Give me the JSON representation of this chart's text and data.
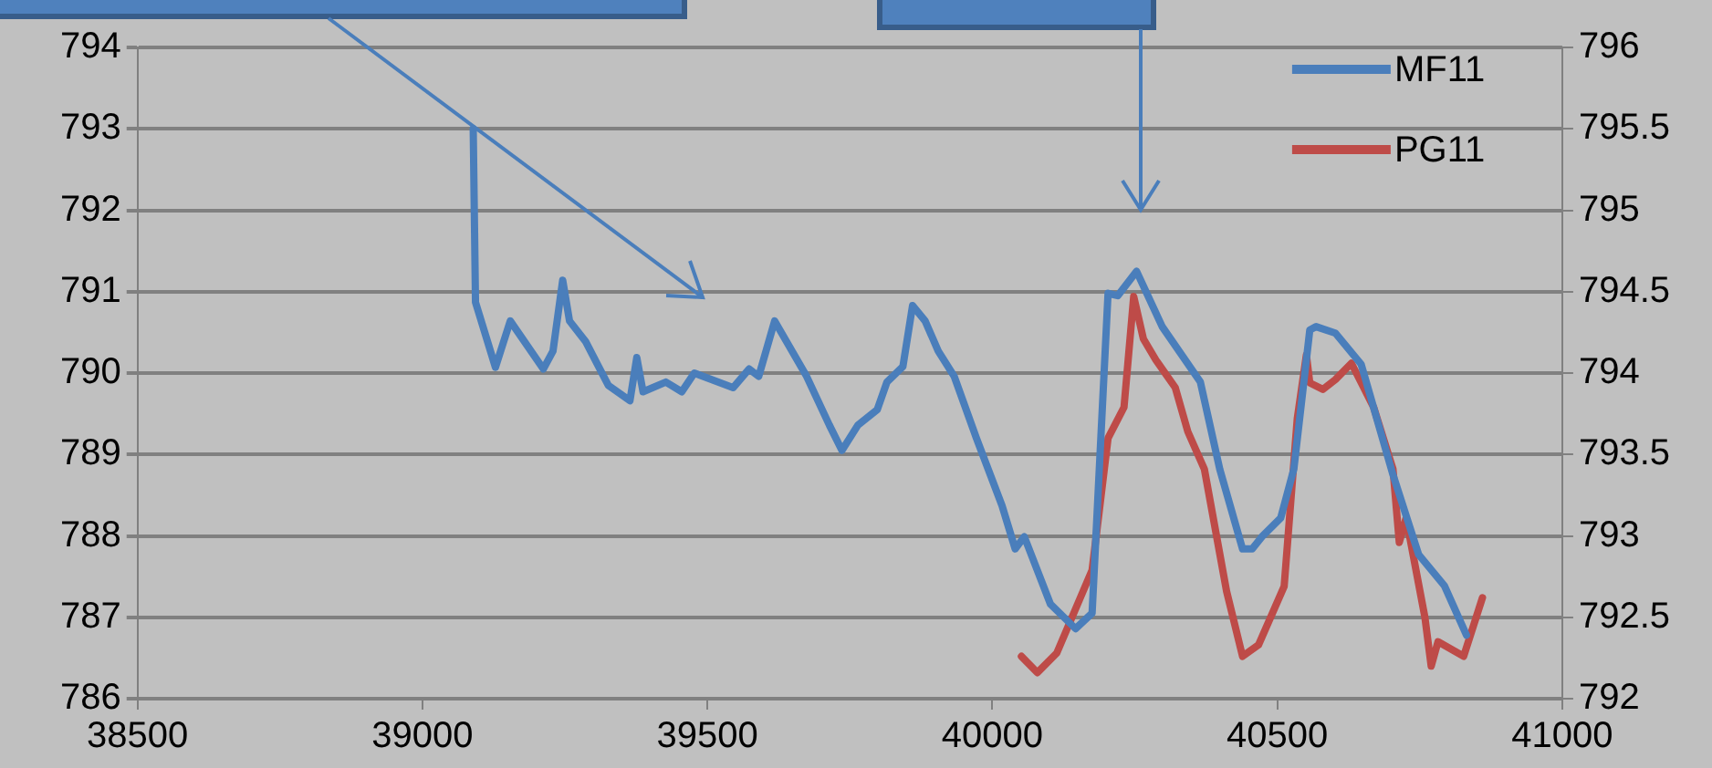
{
  "chart_data": {
    "type": "line",
    "xlim": [
      38500,
      41000
    ],
    "xticks": [
      38500,
      39000,
      39500,
      40000,
      40500,
      41000
    ],
    "ylim": [
      786,
      794
    ],
    "yticks": [
      786,
      787,
      788,
      789,
      790,
      791,
      792,
      793,
      794
    ],
    "y2lim": [
      792,
      796
    ],
    "y2ticks": [
      792,
      792.5,
      793,
      793.5,
      794,
      794.5,
      795,
      795.5,
      796
    ],
    "grid": "y",
    "legend": "top right",
    "marker": "none",
    "line_style": "solid",
    "series": [
      {
        "name": "MF11",
        "color": "#4a7ebb",
        "x": [
          39089,
          39093,
          39128,
          39154,
          39212,
          39229,
          39246,
          39258,
          39286,
          39326,
          39364,
          39376,
          39387,
          39427,
          39455,
          39477,
          39545,
          39573,
          39590,
          39618,
          39674,
          39714,
          39736,
          39764,
          39798,
          39815,
          39843,
          39860,
          39882,
          39905,
          39933,
          39972,
          40017,
          40040,
          40056,
          40102,
          40146,
          40175,
          40203,
          40220,
          40253,
          40298,
          40365,
          40399,
          40439,
          40456,
          40473,
          40506,
          40529,
          40557,
          40568,
          40602,
          40647,
          40703,
          40748,
          40793,
          40832
        ],
        "values": [
          793.0,
          790.87,
          790.07,
          790.64,
          790.05,
          790.27,
          791.14,
          790.64,
          790.39,
          789.85,
          789.66,
          790.19,
          789.77,
          789.89,
          789.77,
          790.0,
          789.82,
          790.05,
          789.96,
          790.64,
          789.96,
          789.36,
          789.05,
          789.36,
          789.55,
          789.89,
          790.08,
          790.83,
          790.64,
          790.27,
          789.96,
          789.2,
          788.37,
          787.84,
          787.99,
          787.16,
          786.86,
          787.05,
          790.98,
          790.95,
          791.25,
          790.57,
          789.89,
          788.82,
          787.84,
          787.84,
          787.99,
          788.22,
          788.82,
          790.53,
          790.57,
          790.49,
          790.11,
          788.75,
          787.77,
          787.39,
          786.78
        ]
      },
      {
        "name": "PG11",
        "color": "#be4b48",
        "axis": "y2",
        "x": [
          40051,
          40079,
          40113,
          40175,
          40203,
          40231,
          40248,
          40265,
          40287,
          40321,
          40343,
          40372,
          40411,
          40439,
          40467,
          40512,
          40535,
          40551,
          40557,
          40580,
          40602,
          40630,
          40669,
          40703,
          40714,
          40726,
          40759,
          40770,
          40782,
          40827,
          40860
        ],
        "values": [
          792.26,
          792.16,
          792.28,
          792.79,
          793.6,
          793.79,
          794.47,
          794.21,
          794.08,
          793.91,
          793.64,
          793.41,
          792.66,
          792.26,
          792.33,
          792.69,
          793.72,
          794.11,
          793.94,
          793.9,
          793.96,
          794.06,
          793.79,
          793.41,
          792.96,
          793.11,
          792.5,
          792.2,
          792.35,
          792.26,
          792.62
        ]
      }
    ]
  }
}
